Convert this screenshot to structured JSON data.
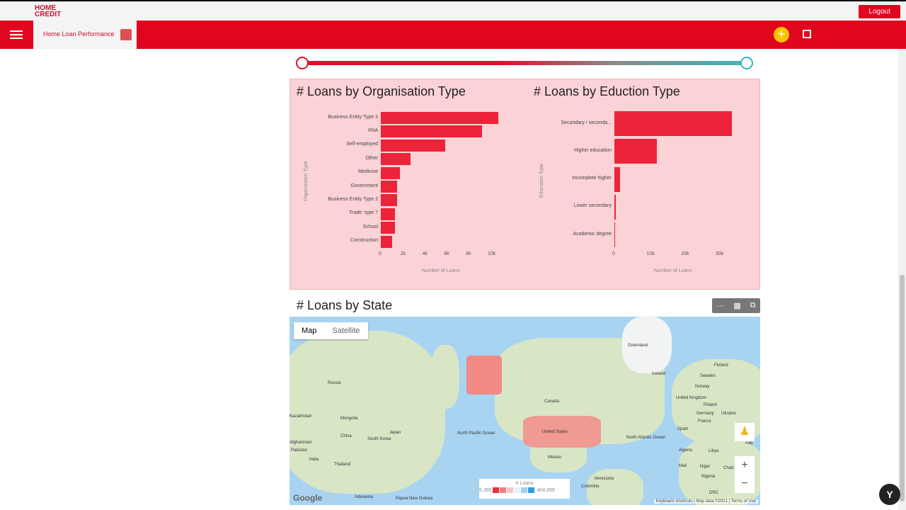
{
  "header": {
    "logo": "HOME CREDIT",
    "logout": "Logout",
    "dashboard_tab": "Home Loan Performance"
  },
  "colors": {
    "brand": "#e1061f",
    "bar": "#ec2339",
    "panel": "#fbd3d6",
    "accent": "#fcc400"
  },
  "chart_data": [
    {
      "type": "bar",
      "orientation": "horizontal",
      "title": "# Loans by Organisation Type",
      "xlabel": "Number of Loans",
      "ylabel": "Organisation Type",
      "categories": [
        "Business Entity Type 3",
        "XNA",
        "Self-employed",
        "Other",
        "Medicine",
        "Government",
        "Business Entity Type 2",
        "Trade: type 7",
        "School",
        "Construction"
      ],
      "values": [
        10800,
        9300,
        5900,
        2700,
        1750,
        1500,
        1500,
        1300,
        1300,
        1050
      ],
      "xticks": [
        "0",
        "2k",
        "4k",
        "6k",
        "8k",
        "10k"
      ],
      "xlim": [
        0,
        11000
      ]
    },
    {
      "type": "bar",
      "orientation": "horizontal",
      "title": "# Loans by Eduction Type",
      "xlabel": "Number of Loans",
      "ylabel": "Education Type",
      "categories": [
        "Secondary / seconda...",
        "Higher education",
        "Incomplete higher",
        "Lower secondary",
        "Academic degree"
      ],
      "values": [
        34100,
        12400,
        1700,
        400,
        20
      ],
      "xticks": [
        "0",
        "10k",
        "20k",
        "30k"
      ],
      "xlim": [
        0,
        35000
      ]
    }
  ],
  "map": {
    "title": "# Loans by State",
    "tabs": [
      "Map",
      "Satellite"
    ],
    "labels": [
      "Greenland",
      "Iceland",
      "Finland",
      "Sweden",
      "Norway",
      "United Kingdom",
      "Poland",
      "Ukraine",
      "Germany",
      "France",
      "Spain",
      "Algeria",
      "Libya",
      "Mali",
      "Niger",
      "Chad",
      "Nigeria",
      "DRC",
      "Russia",
      "Kazakhstan",
      "Mongolia",
      "China",
      "South Korea",
      "Japan",
      "Afghanistan",
      "Pakistan",
      "India",
      "Thailand",
      "Indonesia",
      "Papua New Guinea",
      "Canada",
      "United States",
      "Mexico",
      "North Pacific Ocean",
      "North Atlantic Ocean",
      "Venezuela",
      "Colombia",
      "Iraq"
    ],
    "legend": {
      "title": "# Loans",
      "min": "5,395",
      "max": "404,099",
      "colors": [
        "#e8323f",
        "#f07f87",
        "#f8c4c8",
        "#e6f1fb",
        "#9fd0f0",
        "#2f9de2"
      ]
    },
    "attribution": [
      "Keyboard shortcuts",
      "Map data ©2021",
      "Terms of Use"
    ],
    "google": "Google"
  },
  "toolbar_icons": [
    "more-icon",
    "table-icon",
    "expand-icon"
  ]
}
